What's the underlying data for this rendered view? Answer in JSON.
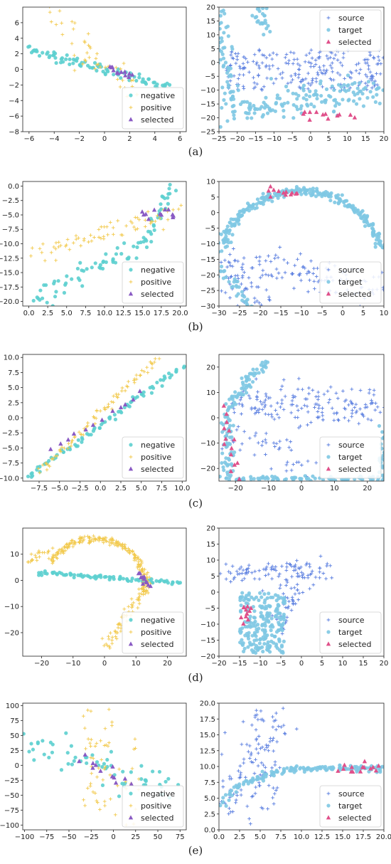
{
  "colors": {
    "teal": "#5ccfcf",
    "yellow": "#f2c94c",
    "purple": "#8a5bc4",
    "lightblue": "#7ec8e3",
    "blue": "#5b7fe0",
    "pink": "#e0508a"
  },
  "captions": [
    "(a)",
    "(b)",
    "(c)",
    "(d)",
    "(e)"
  ],
  "chart_data": [
    {
      "id": "a-left",
      "type": "scatter",
      "xlim": [
        -6.5,
        6.5
      ],
      "ylim": [
        -8,
        8
      ],
      "xticks": [
        -6,
        -4,
        -2,
        0,
        2,
        4,
        6
      ],
      "yticks": [
        -8,
        -6,
        -4,
        -2,
        0,
        2,
        4,
        6
      ],
      "legend": "bottom-right",
      "series": [
        {
          "name": "negative",
          "marker": "circle",
          "color": "#5ccfcf",
          "gen": {
            "kind": "line",
            "x0": -6,
            "y0": 2.6,
            "x1": 5,
            "y1": -2.3,
            "n": 90,
            "sx": 0.2,
            "sy": 0.3
          }
        },
        {
          "name": "positive",
          "marker": "plus",
          "color": "#f2c94c",
          "gen": {
            "kind": "multi",
            "parts": [
              {
                "x0": -4.5,
                "y0": 7.4,
                "x1": -0.5,
                "y1": 2,
                "n": 22,
                "sx": 0.5,
                "sy": 1.0
              },
              {
                "x0": -2,
                "y0": 1.8,
                "x1": 2.5,
                "y1": -2.5,
                "n": 25,
                "sx": 0.6,
                "sy": 1.0
              }
            ]
          }
        },
        {
          "name": "selected",
          "marker": "triangle",
          "color": "#8a5bc4",
          "gen": {
            "kind": "line",
            "x0": 0.3,
            "y0": 0.2,
            "x1": 2.2,
            "y1": -0.8,
            "n": 12,
            "sx": 0.1,
            "sy": 0.25
          }
        }
      ]
    },
    {
      "id": "a-right",
      "type": "scatter",
      "xlim": [
        -25,
        20
      ],
      "ylim": [
        -25,
        20
      ],
      "xticks": [
        -25,
        -20,
        -15,
        -10,
        -5,
        0,
        5,
        10,
        15,
        20
      ],
      "yticks": [
        -25,
        -20,
        -15,
        -10,
        -5,
        0,
        5,
        10,
        15,
        20
      ],
      "legend": "top-right",
      "series": [
        {
          "name": "source",
          "marker": "plus",
          "color": "#5b7fe0",
          "gen": {
            "kind": "box",
            "x0": -23,
            "y0": -10,
            "x1": 20,
            "y1": 5,
            "n": 230
          }
        },
        {
          "name": "target",
          "marker": "circle",
          "color": "#7ec8e3",
          "gen": {
            "kind": "multi",
            "parts": [
              {
                "x0": -25,
                "y0": 18,
                "x1": -22,
                "y1": -15,
                "n": 60,
                "sx": 1.5,
                "sy": 2
              },
              {
                "x0": -22,
                "y0": -18,
                "x1": 20,
                "y1": -10,
                "n": 150,
                "sx": 2,
                "sy": 3
              },
              {
                "x0": -15,
                "y0": 19,
                "x1": -11,
                "y1": 14,
                "n": 25,
                "sx": 1,
                "sy": 2
              }
            ]
          }
        },
        {
          "name": "selected",
          "marker": "triangle",
          "color": "#e0508a",
          "gen": {
            "kind": "line",
            "x0": -3,
            "y0": -19,
            "x1": 11,
            "y1": -19.5,
            "n": 12,
            "sx": 0.8,
            "sy": 0.8
          }
        }
      ]
    },
    {
      "id": "b-left",
      "type": "scatter",
      "xlim": [
        -0.8,
        20.8
      ],
      "ylim": [
        -20.8,
        0.8
      ],
      "xticks": [
        0.0,
        2.5,
        5.0,
        7.5,
        10.0,
        12.5,
        15.0,
        17.5,
        20.0
      ],
      "yticks": [
        -20.0,
        -17.5,
        -15.0,
        -12.5,
        -10.0,
        -7.5,
        -5.0,
        -2.5,
        0.0
      ],
      "legend": "bottom-right",
      "series": [
        {
          "name": "negative",
          "marker": "circle",
          "color": "#5ccfcf",
          "gen": {
            "kind": "multi",
            "parts": [
              {
                "x0": 0.5,
                "y0": -19.5,
                "x1": 15,
                "y1": -10,
                "n": 55,
                "sx": 0.5,
                "sy": 0.8
              },
              {
                "x0": 15,
                "y0": -10,
                "x1": 19,
                "y1": -0.5,
                "n": 30,
                "sx": 0.4,
                "sy": 0.8
              }
            ]
          }
        },
        {
          "name": "positive",
          "marker": "plus",
          "color": "#f2c94c",
          "gen": {
            "kind": "line",
            "x0": 1,
            "y0": -12,
            "x1": 19.5,
            "y1": -4,
            "n": 70,
            "sx": 0.6,
            "sy": 1.0
          }
        },
        {
          "name": "selected",
          "marker": "triangle",
          "color": "#8a5bc4",
          "gen": {
            "kind": "line",
            "x0": 15,
            "y0": -4.5,
            "x1": 19.8,
            "y1": -5.5,
            "n": 12,
            "sx": 0.4,
            "sy": 0.6
          }
        }
      ]
    },
    {
      "id": "b-right",
      "type": "scatter",
      "xlim": [
        -30,
        10
      ],
      "ylim": [
        -30,
        10
      ],
      "xticks": [
        -30,
        -25,
        -20,
        -15,
        -10,
        -5,
        0,
        5,
        10
      ],
      "yticks": [
        -30,
        -25,
        -20,
        -15,
        -10,
        -5,
        0,
        5,
        10
      ],
      "legend": "bottom-right",
      "series": [
        {
          "name": "source",
          "marker": "plus",
          "color": "#5b7fe0",
          "gen": {
            "kind": "multi",
            "parts": [
              {
                "x0": -29,
                "y0": -15,
                "x1": -20,
                "y1": -28,
                "n": 60,
                "sx": 2,
                "sy": 3
              },
              {
                "x0": -22,
                "y0": -17,
                "x1": 8,
                "y1": -24,
                "n": 100,
                "sx": 3,
                "sy": 3
              }
            ]
          }
        },
        {
          "name": "target",
          "marker": "circle",
          "color": "#7ec8e3",
          "gen": {
            "kind": "arc",
            "cx": -10,
            "cy": -18,
            "rx": 20,
            "ry": 25,
            "a0": 15,
            "a1": 165,
            "n": 260,
            "sx": 0.6,
            "sy": 0.6,
            "extra": [
              {
                "x0": -30,
                "y0": -18,
                "x1": -22,
                "y1": -30,
                "n": 30,
                "sx": 0.8,
                "sy": 0.8
              }
            ]
          }
        },
        {
          "name": "selected",
          "marker": "triangle",
          "color": "#e0508a",
          "gen": {
            "kind": "line",
            "x0": -18,
            "y0": 7,
            "x1": -11,
            "y1": 6,
            "n": 12,
            "sx": 0.6,
            "sy": 0.6
          }
        }
      ]
    },
    {
      "id": "c-left",
      "type": "scatter",
      "xlim": [
        -9.5,
        10.5
      ],
      "ylim": [
        -10.5,
        10.5
      ],
      "xticks": [
        -7.5,
        -5.0,
        -2.5,
        0.0,
        2.5,
        5.0,
        7.5,
        10.0
      ],
      "yticks": [
        -10.0,
        -7.5,
        -5.0,
        -2.5,
        0.0,
        2.5,
        5.0,
        7.5,
        10.0
      ],
      "legend": "bottom-right",
      "series": [
        {
          "name": "negative",
          "marker": "circle",
          "color": "#5ccfcf",
          "gen": {
            "kind": "line",
            "x0": -9,
            "y0": -10,
            "x1": 10,
            "y1": 8.5,
            "n": 80,
            "sx": 0.25,
            "sy": 0.25
          }
        },
        {
          "name": "positive",
          "marker": "plus",
          "color": "#f2c94c",
          "gen": {
            "kind": "line",
            "x0": -7.5,
            "y0": -9,
            "x1": 7,
            "y1": 9.8,
            "n": 80,
            "sx": 0.25,
            "sy": 0.3
          }
        },
        {
          "name": "selected",
          "marker": "triangle",
          "color": "#8a5bc4",
          "gen": {
            "kind": "line",
            "x0": -6,
            "y0": -5.5,
            "x1": 5,
            "y1": 4,
            "n": 12,
            "sx": 0.3,
            "sy": 0.3
          }
        }
      ]
    },
    {
      "id": "c-right",
      "type": "scatter",
      "xlim": [
        -25,
        25
      ],
      "ylim": [
        -25,
        25
      ],
      "xticks": [
        -20,
        -10,
        0,
        10,
        20
      ],
      "yticks": [
        -20,
        -10,
        0,
        10,
        20
      ],
      "legend": "bottom-right",
      "series": [
        {
          "name": "source",
          "marker": "plus",
          "color": "#5b7fe0",
          "gen": {
            "kind": "multi",
            "parts": [
              {
                "x0": -20,
                "y0": 5,
                "x1": 24,
                "y1": 5,
                "n": 160,
                "sx": 1.5,
                "sy": 4
              },
              {
                "x0": -20,
                "y0": -5,
                "x1": 0,
                "y1": -20,
                "n": 40,
                "sx": 3,
                "sy": 3
              }
            ]
          }
        },
        {
          "name": "target",
          "marker": "circle",
          "color": "#7ec8e3",
          "gen": {
            "kind": "multi",
            "parts": [
              {
                "x0": -23,
                "y0": 2,
                "x1": -22,
                "y1": -24,
                "n": 60,
                "sx": 0.8,
                "sy": 1.5
              },
              {
                "x0": -22,
                "y0": -24,
                "x1": 24,
                "y1": -24,
                "n": 80,
                "sx": 1.5,
                "sy": 0.5
              },
              {
                "x0": -22,
                "y0": 5,
                "x1": -11,
                "y1": 22,
                "n": 60,
                "sx": 1.0,
                "sy": 1.0
              },
              {
                "x0": 24,
                "y0": -24,
                "x1": 25,
                "y1": -5,
                "n": 30,
                "sx": 0.8,
                "sy": 2
              }
            ]
          }
        },
        {
          "name": "selected",
          "marker": "triangle",
          "color": "#e0508a",
          "gen": {
            "kind": "line",
            "x0": -23,
            "y0": 3,
            "x1": -20,
            "y1": -23,
            "n": 14,
            "sx": 1.0,
            "sy": 1.0
          }
        }
      ]
    },
    {
      "id": "d-left",
      "type": "scatter",
      "xlim": [
        -26,
        26
      ],
      "ylim": [
        -29,
        20
      ],
      "xticks": [
        -20,
        -10,
        0,
        10,
        20
      ],
      "yticks": [
        -20,
        -10,
        0,
        10
      ],
      "legend": "bottom-right",
      "series": [
        {
          "name": "negative",
          "marker": "circle",
          "color": "#5ccfcf",
          "gen": {
            "kind": "line",
            "x0": -21,
            "y0": 3,
            "x1": 24,
            "y1": -1,
            "n": 80,
            "sx": 0.4,
            "sy": 0.4
          }
        },
        {
          "name": "positive",
          "marker": "plus",
          "color": "#f2c94c",
          "gen": {
            "kind": "arc",
            "cx": -3,
            "cy": -2,
            "rx": 16,
            "ry": 18,
            "a0": -10,
            "a1": 150,
            "n": 220,
            "sx": 0.6,
            "sy": 0.6,
            "extra": [
              {
                "x0": 13,
                "y0": -2,
                "x1": 0,
                "y1": -26,
                "n": 60,
                "sx": 0.8,
                "sy": 0.6
              },
              {
                "x0": -25,
                "y0": 7,
                "x1": -17,
                "y1": 12,
                "n": 20,
                "sx": 0.8,
                "sy": 0.6
              }
            ]
          }
        },
        {
          "name": "selected",
          "marker": "triangle",
          "color": "#8a5bc4",
          "gen": {
            "kind": "line",
            "x0": 11.5,
            "y0": 2,
            "x1": 13.5,
            "y1": -2,
            "n": 12,
            "sx": 0.4,
            "sy": 0.6
          }
        }
      ]
    },
    {
      "id": "d-right",
      "type": "scatter",
      "xlim": [
        -20,
        20
      ],
      "ylim": [
        -20,
        20
      ],
      "xticks": [
        -20,
        -15,
        -10,
        -5,
        0,
        5,
        10,
        15,
        20
      ],
      "yticks": [
        -20,
        -15,
        -10,
        -5,
        0,
        5,
        10,
        15,
        20
      ],
      "legend": "bottom-right",
      "series": [
        {
          "name": "source",
          "marker": "plus",
          "color": "#5b7fe0",
          "gen": {
            "kind": "multi",
            "parts": [
              {
                "x0": -18,
                "y0": 6,
                "x1": 6,
                "y1": 7,
                "n": 100,
                "sx": 2,
                "sy": 2
              },
              {
                "x0": 0,
                "y0": 3,
                "x1": -6,
                "y1": -10,
                "n": 40,
                "sx": 1.5,
                "sy": 2
              }
            ]
          }
        },
        {
          "name": "target",
          "marker": "circle",
          "color": "#7ec8e3",
          "gen": {
            "kind": "box",
            "x0": -15,
            "y0": -19,
            "x1": -4,
            "y1": 0,
            "n": 220
          }
        },
        {
          "name": "selected",
          "marker": "triangle",
          "color": "#e0508a",
          "gen": {
            "kind": "line",
            "x0": -14.5,
            "y0": -9,
            "x1": -12.5,
            "y1": -4,
            "n": 12,
            "sx": 0.6,
            "sy": 0.6
          }
        }
      ]
    },
    {
      "id": "e-left",
      "type": "scatter",
      "xlim": [
        -102,
        82
      ],
      "ylim": [
        -108,
        104
      ],
      "xticks": [
        -100,
        -75,
        -50,
        -25,
        0,
        25,
        50,
        75
      ],
      "yticks": [
        -100,
        -75,
        -50,
        -25,
        0,
        25,
        50,
        75,
        100
      ],
      "legend": "bottom-right",
      "series": [
        {
          "name": "negative",
          "marker": "circle",
          "color": "#5ccfcf",
          "gen": {
            "kind": "line",
            "x0": -95,
            "y0": 40,
            "x1": 70,
            "y1": -40,
            "n": 60,
            "sx": 8,
            "sy": 14
          }
        },
        {
          "name": "positive",
          "marker": "plus",
          "color": "#f2c94c",
          "gen": {
            "kind": "box",
            "x0": -35,
            "y0": -100,
            "x1": 30,
            "y1": 95,
            "n": 60
          }
        },
        {
          "name": "selected",
          "marker": "triangle",
          "color": "#8a5bc4",
          "gen": {
            "kind": "line",
            "x0": -35,
            "y0": 12,
            "x1": 20,
            "y1": -35,
            "n": 12,
            "sx": 4,
            "sy": 6
          }
        }
      ]
    },
    {
      "id": "e-right",
      "type": "scatter",
      "xlim": [
        0,
        20
      ],
      "ylim": [
        0,
        20
      ],
      "xticks": [
        0.0,
        2.5,
        5.0,
        7.5,
        10.0,
        12.5,
        15.0,
        17.5,
        20.0
      ],
      "yticks": [
        0.0,
        2.5,
        5.0,
        7.5,
        10.0,
        12.5,
        15.0,
        17.5,
        20.0
      ],
      "legend": "bottom-right",
      "series": [
        {
          "name": "source",
          "marker": "plus",
          "color": "#5b7fe0",
          "gen": {
            "kind": "multi",
            "parts": [
              {
                "x0": 1,
                "y0": 4,
                "x1": 6,
                "y1": 18,
                "n": 90,
                "sx": 1.2,
                "sy": 2.5
              },
              {
                "x0": 5,
                "y0": 2,
                "x1": 7,
                "y1": 19,
                "n": 40,
                "sx": 1,
                "sy": 3
              }
            ]
          }
        },
        {
          "name": "target",
          "marker": "circle",
          "color": "#7ec8e3",
          "gen": {
            "kind": "curve",
            "n": 150,
            "sx": 0.25,
            "sy": 0.25
          }
        },
        {
          "name": "selected",
          "marker": "triangle",
          "color": "#e0508a",
          "gen": {
            "kind": "line",
            "x0": 15,
            "y0": 9.7,
            "x1": 19.5,
            "y1": 9.7,
            "n": 14,
            "sx": 0.3,
            "sy": 0.4
          }
        }
      ]
    }
  ]
}
